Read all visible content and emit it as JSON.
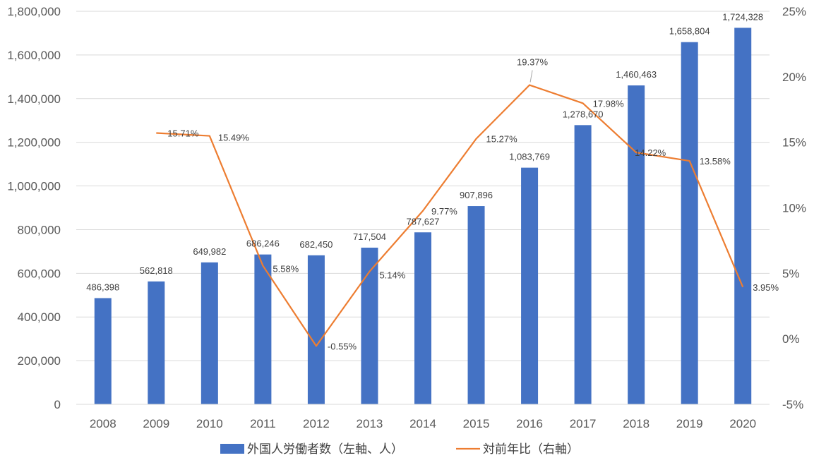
{
  "chart_data": {
    "type": "bar",
    "categories": [
      "2008",
      "2009",
      "2010",
      "2011",
      "2012",
      "2013",
      "2014",
      "2015",
      "2016",
      "2017",
      "2018",
      "2019",
      "2020"
    ],
    "series": [
      {
        "name": "外国人労働者数（左軸、人）",
        "type": "bar",
        "axis": "left",
        "color": "#4472C4",
        "values": [
          486398,
          562818,
          649982,
          686246,
          682450,
          717504,
          787627,
          907896,
          1083769,
          1278670,
          1460463,
          1658804,
          1724328
        ],
        "labels": [
          "486,398",
          "562,818",
          "649,982",
          "686,246",
          "682,450",
          "717,504",
          "787,627",
          "907,896",
          "1,083,769",
          "1,278,670",
          "1,460,463",
          "1,658,804",
          "1,724,328"
        ]
      },
      {
        "name": "対前年比（右軸）",
        "type": "line",
        "axis": "right",
        "color": "#ED7D31",
        "values": [
          null,
          15.71,
          15.49,
          5.58,
          -0.55,
          5.14,
          9.77,
          15.27,
          19.37,
          17.98,
          14.22,
          13.58,
          3.95
        ],
        "labels": [
          "",
          "15.71%",
          "15.49%",
          "5.58%",
          "-0.55%",
          "5.14%",
          "9.77%",
          "15.27%",
          "19.37%",
          "17.98%",
          "14.22%",
          "13.58%",
          "3.95%"
        ]
      }
    ],
    "left_axis": {
      "ylim": [
        0,
        1800000
      ],
      "ticks": [
        0,
        200000,
        400000,
        600000,
        800000,
        1000000,
        1200000,
        1400000,
        1600000,
        1800000
      ],
      "tick_labels": [
        "0",
        "200,000",
        "400,000",
        "600,000",
        "800,000",
        "1,000,000",
        "1,200,000",
        "1,400,000",
        "1,600,000",
        "1,800,000"
      ]
    },
    "right_axis": {
      "ylim": [
        -5,
        25
      ],
      "ticks": [
        -5,
        0,
        5,
        10,
        15,
        20,
        25
      ],
      "tick_labels": [
        "-5%",
        "0%",
        "5%",
        "10%",
        "15%",
        "20%",
        "25%"
      ]
    },
    "grid": true,
    "legend": "bottom"
  }
}
